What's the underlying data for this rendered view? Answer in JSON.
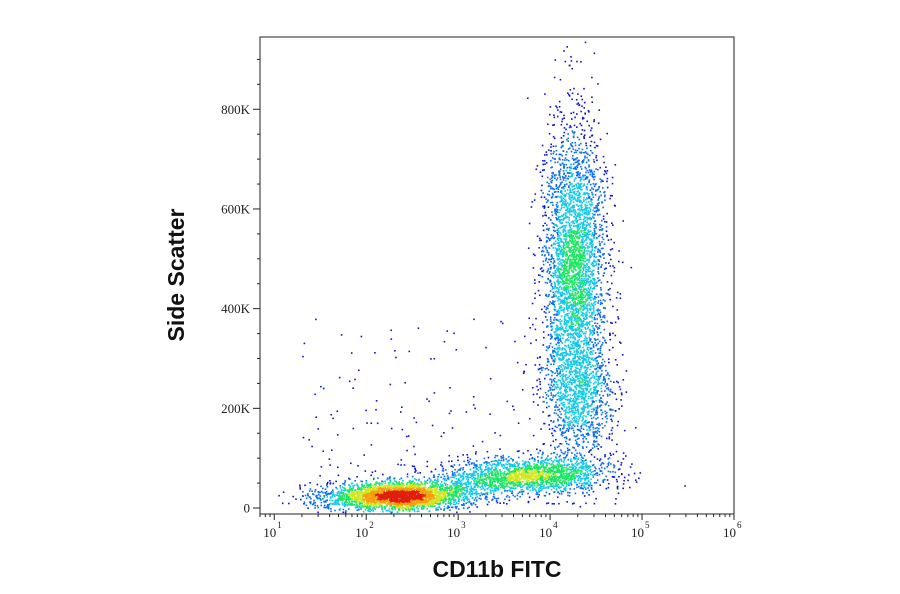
{
  "chart_data": {
    "type": "scatter",
    "style": "flow-cytometry-density-dot-plot",
    "xlabel": "CD11b FITC",
    "ylabel": "Side Scatter",
    "x_scale": "log",
    "xlim": [
      7,
      1000000
    ],
    "ylim": [
      -12000,
      945000
    ],
    "x_ticks": [
      {
        "value": 10,
        "base": "10",
        "exp": "1"
      },
      {
        "value": 100,
        "base": "10",
        "exp": "2"
      },
      {
        "value": 1000,
        "base": "10",
        "exp": "3"
      },
      {
        "value": 10000,
        "base": "10",
        "exp": "4"
      },
      {
        "value": 100000,
        "base": "10",
        "exp": "5"
      },
      {
        "value": 1000000,
        "base": "10",
        "exp": "6"
      }
    ],
    "y_ticks": [
      {
        "value": 0,
        "label": "0"
      },
      {
        "value": 200000,
        "label": "200K"
      },
      {
        "value": 400000,
        "label": "400K"
      },
      {
        "value": 600000,
        "label": "600K"
      },
      {
        "value": 800000,
        "label": "800K"
      }
    ],
    "density_colormap": [
      "#0a14d8",
      "#0a6cf0",
      "#14c8e6",
      "#1ee664",
      "#d2e61e",
      "#f5a00a",
      "#e11e0a"
    ],
    "populations": [
      {
        "center_x": 200,
        "center_y": 25000,
        "spread_log_x": 0.38,
        "spread_y": 14000,
        "peak_density": "high"
      },
      {
        "center_x": 6000,
        "center_y": 70000,
        "spread_log_x": 0.45,
        "spread_y": 18000,
        "peak_density": "medium"
      },
      {
        "center_x": 18000,
        "center_y": 480000,
        "spread_log_x": 0.17,
        "spread_y": 140000,
        "peak_density": "medium"
      },
      {
        "center_x": 20000,
        "center_y": 220000,
        "spread_log_x": 0.2,
        "spread_y": 60000,
        "peak_density": "low"
      }
    ],
    "grid": false,
    "legend": "none"
  }
}
